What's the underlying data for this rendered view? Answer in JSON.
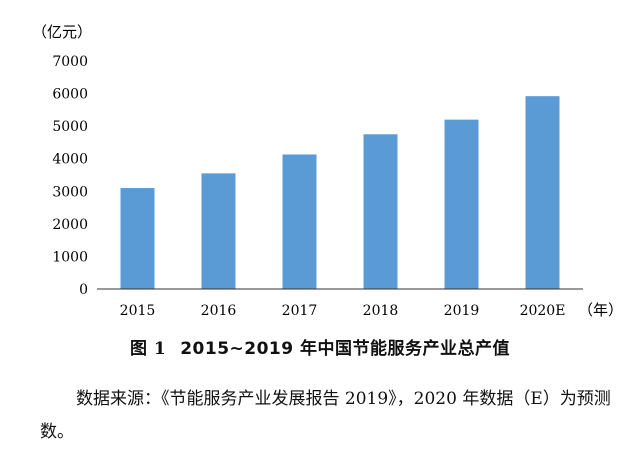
{
  "chart_data": {
    "type": "bar",
    "ylabel": "（亿元）",
    "xlabel": "（年）",
    "categories": [
      "2015",
      "2016",
      "2017",
      "2018",
      "2019",
      "2020E"
    ],
    "values": [
      3100,
      3550,
      4130,
      4750,
      5200,
      5920
    ],
    "ylim": [
      0,
      7000
    ],
    "yticks": [
      0,
      1000,
      2000,
      3000,
      4000,
      5000,
      6000,
      7000
    ],
    "bar_color": "#5b9bd5",
    "grid": false
  },
  "figure": {
    "caption_number": "图 1",
    "caption_text": "2015~2019 年中国节能服务产业总产值"
  },
  "source_note": "数据来源：《节能服务产业发展报告 2019》，2020 年数据（E）为预测数。"
}
